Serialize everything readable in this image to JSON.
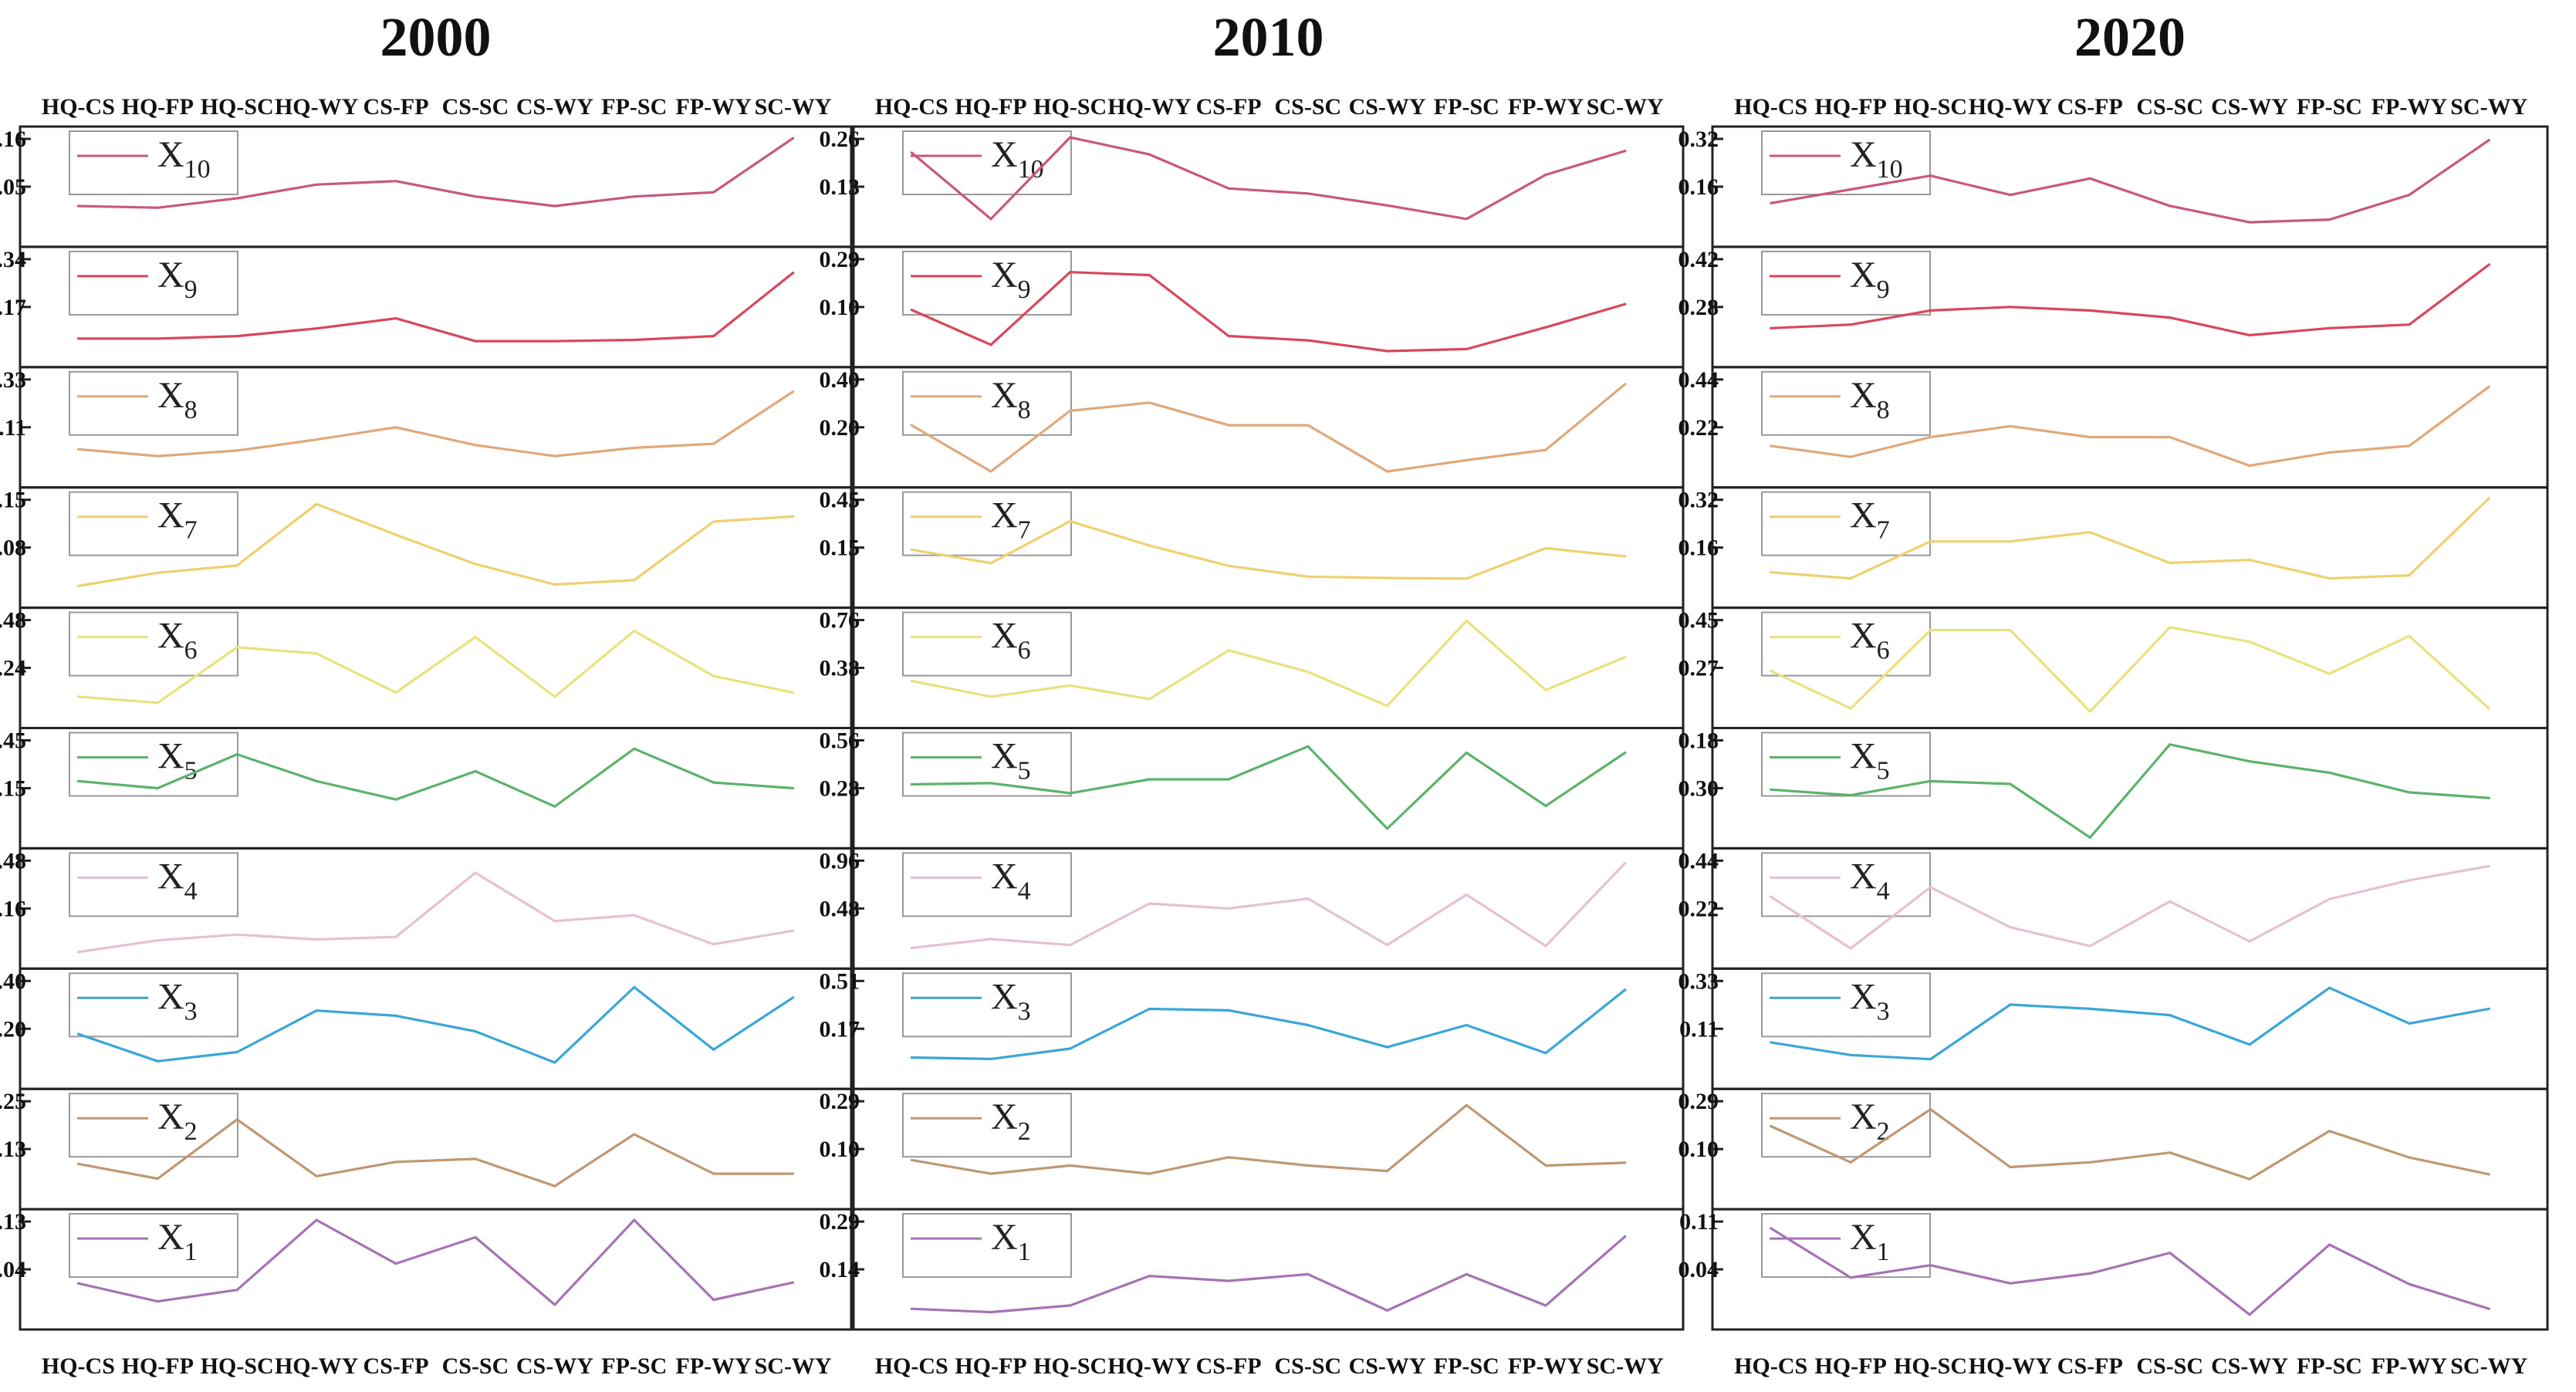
{
  "figure": {
    "categories": [
      "HQ-CS",
      "HQ-FP",
      "HQ-SC",
      "HQ-WY",
      "CS-FP",
      "CS-SC",
      "CS-WY",
      "FP-SC",
      "FP-WY",
      "SC-WY"
    ]
  },
  "chart_data": [
    {
      "type": "line",
      "title": "2000",
      "categories": [
        "HQ-CS",
        "HQ-FP",
        "HQ-SC",
        "HQ-WY",
        "CS-FP",
        "CS-SC",
        "CS-WY",
        "FP-SC",
        "FP-WY",
        "SC-WY"
      ],
      "panels": [
        {
          "label_base": "X",
          "label_sub": "10",
          "color": "#c8587a",
          "ticks": [
            "0.16",
            "0.05"
          ],
          "ylim": [
            -0.07,
            0.16
          ],
          "values": [
            0.0,
            -0.004,
            0.018,
            0.05,
            0.058,
            0.022,
            0.0,
            0.022,
            0.032,
            0.158
          ]
        },
        {
          "label_base": "X",
          "label_sub": "9",
          "color": "#d8475c",
          "ticks": [
            "0.34",
            "0.17"
          ],
          "ylim": [
            -0.05,
            0.34
          ],
          "values": [
            0.02,
            0.02,
            0.03,
            0.06,
            0.1,
            0.01,
            0.01,
            0.015,
            0.03,
            0.28
          ]
        },
        {
          "label_base": "X",
          "label_sub": "8",
          "color": "#e0a87a",
          "ticks": [
            "0.33",
            "0.11"
          ],
          "ylim": [
            -0.03,
            0.33
          ],
          "values": [
            0.07,
            0.045,
            0.065,
            0.105,
            0.15,
            0.085,
            0.045,
            0.075,
            0.09,
            0.28
          ]
        },
        {
          "label_base": "X",
          "label_sub": "7",
          "color": "#efd06e",
          "ticks": [
            "0.15",
            "0.08"
          ],
          "ylim": [
            0.015,
            0.15
          ],
          "values": [
            0.03,
            0.048,
            0.058,
            0.142,
            0.1,
            0.06,
            0.032,
            0.038,
            0.118,
            0.125
          ]
        },
        {
          "label_base": "X",
          "label_sub": "6",
          "color": "#e8e27e",
          "ticks": [
            "0.48",
            "0.24"
          ],
          "ylim": [
            0.0,
            0.48
          ],
          "values": [
            0.1,
            0.07,
            0.34,
            0.31,
            0.12,
            0.39,
            0.1,
            0.42,
            0.2,
            0.12
          ]
        },
        {
          "label_base": "X",
          "label_sub": "5",
          "color": "#5cb36a",
          "ticks": [
            "0.45",
            "0.15"
          ],
          "ylim": [
            -0.25,
            0.45
          ],
          "values": [
            0.15,
            0.1,
            0.34,
            0.15,
            0.02,
            0.22,
            -0.03,
            0.38,
            0.14,
            0.1
          ]
        },
        {
          "label_base": "X",
          "label_sub": "4",
          "color": "#e6c0d4",
          "ticks": [
            "0.48",
            "0.16"
          ],
          "ylim": [
            -0.03,
            0.48
          ],
          "values": [
            0.0,
            0.06,
            0.09,
            0.065,
            0.078,
            0.41,
            0.16,
            0.19,
            0.04,
            0.11
          ]
        },
        {
          "label_base": "X",
          "label_sub": "3",
          "color": "#3aa6d8",
          "ticks": [
            "0.40",
            "0.20"
          ],
          "ylim": [
            0.02,
            0.4
          ],
          "values": [
            0.19,
            0.085,
            0.12,
            0.28,
            0.26,
            0.2,
            0.08,
            0.37,
            0.13,
            0.33
          ]
        },
        {
          "label_base": "X",
          "label_sub": "2",
          "color": "#bf9872",
          "ticks": [
            "0.25",
            "0.13"
          ],
          "ylim": [
            0.05,
            0.25
          ],
          "values": [
            0.12,
            0.09,
            0.21,
            0.095,
            0.124,
            0.13,
            0.075,
            0.18,
            0.1,
            0.1
          ]
        },
        {
          "label_base": "X",
          "label_sub": "1",
          "color": "#a772b5",
          "ticks": [
            "0.13",
            "0.04"
          ],
          "ylim": [
            0.01,
            0.13
          ],
          "values": [
            0.053,
            0.031,
            0.045,
            0.13,
            0.077,
            0.109,
            0.027,
            0.13,
            0.033,
            0.054
          ]
        }
      ]
    },
    {
      "type": "line",
      "title": "2010",
      "categories": [
        "HQ-CS",
        "HQ-FP",
        "HQ-SC",
        "HQ-WY",
        "CS-FP",
        "CS-SC",
        "CS-WY",
        "FP-SC",
        "FP-WY",
        "SC-WY"
      ],
      "panels": [
        {
          "label_base": "X",
          "label_sub": "10",
          "color": "#c8587a",
          "ticks": [
            "0.26",
            "0.13"
          ],
          "ylim": [
            -0.02,
            0.27
          ],
          "values": [
            0.225,
            0.03,
            0.27,
            0.22,
            0.12,
            0.105,
            0.07,
            0.03,
            0.16,
            0.23
          ]
        },
        {
          "label_base": "X",
          "label_sub": "9",
          "color": "#d8475c",
          "ticks": [
            "0.29",
            "0.10"
          ],
          "ylim": [
            -0.04,
            0.3
          ],
          "values": [
            0.12,
            0.0,
            0.25,
            0.24,
            0.03,
            0.015,
            -0.022,
            -0.015,
            0.06,
            0.14
          ]
        },
        {
          "label_base": "X",
          "label_sub": "8",
          "color": "#e0a87a",
          "ticks": [
            "0.40",
            "0.20"
          ],
          "ylim": [
            -0.05,
            0.43
          ],
          "values": [
            0.2,
            -0.025,
            0.27,
            0.31,
            0.2,
            0.2,
            -0.025,
            0.03,
            0.08,
            0.4
          ]
        },
        {
          "label_base": "X",
          "label_sub": "7",
          "color": "#efd06e",
          "ticks": [
            "0.45",
            "0.15"
          ],
          "ylim": [
            -0.05,
            0.68
          ],
          "values": [
            0.3,
            0.2,
            0.51,
            0.33,
            0.18,
            0.1,
            0.09,
            0.085,
            0.31,
            0.25
          ]
        },
        {
          "label_base": "X",
          "label_sub": "6",
          "color": "#e8e27e",
          "ticks": [
            "0.76",
            "0.38"
          ],
          "ylim": [
            0.0,
            0.87
          ],
          "values": [
            0.32,
            0.18,
            0.28,
            0.16,
            0.59,
            0.4,
            0.1,
            0.85,
            0.24,
            0.53
          ]
        },
        {
          "label_base": "X",
          "label_sub": "5",
          "color": "#5cb36a",
          "ticks": [
            "0.56",
            "0.28"
          ],
          "ylim": [
            -0.12,
            0.66
          ],
          "values": [
            0.3,
            0.31,
            0.23,
            0.34,
            0.34,
            0.6,
            -0.05,
            0.55,
            0.13,
            0.55
          ]
        },
        {
          "label_base": "X",
          "label_sub": "4",
          "color": "#e6c0d4",
          "ticks": [
            "0.96",
            "0.48"
          ],
          "ylim": [
            0.0,
            1.0
          ],
          "values": [
            0.1,
            0.19,
            0.13,
            0.55,
            0.5,
            0.6,
            0.13,
            0.64,
            0.12,
            0.96
          ]
        },
        {
          "label_base": "X",
          "label_sub": "3",
          "color": "#3aa6d8",
          "ticks": [
            "0.51",
            "0.17"
          ],
          "ylim": [
            -0.09,
            0.58
          ],
          "values": [
            0.05,
            0.04,
            0.11,
            0.38,
            0.37,
            0.27,
            0.12,
            0.27,
            0.08,
            0.51
          ]
        },
        {
          "label_base": "X",
          "label_sub": "2",
          "color": "#bf9872",
          "ticks": [
            "0.29",
            "0.10"
          ],
          "ylim": [
            -0.05,
            0.31
          ],
          "values": [
            0.09,
            0.04,
            0.07,
            0.04,
            0.1,
            0.07,
            0.05,
            0.29,
            0.07,
            0.08
          ]
        },
        {
          "label_base": "X",
          "label_sub": "1",
          "color": "#a772b5",
          "ticks": [
            "0.29",
            "0.14"
          ],
          "ylim": [
            0.02,
            0.32
          ],
          "values": [
            0.05,
            0.04,
            0.06,
            0.15,
            0.135,
            0.155,
            0.045,
            0.155,
            0.06,
            0.27
          ]
        }
      ]
    },
    {
      "type": "line",
      "title": "2020",
      "categories": [
        "HQ-CS",
        "HQ-FP",
        "HQ-SC",
        "HQ-WY",
        "CS-FP",
        "CS-SC",
        "CS-WY",
        "FP-SC",
        "FP-WY",
        "SC-WY"
      ],
      "panels": [
        {
          "label_base": "X",
          "label_sub": "10",
          "color": "#c8587a",
          "ticks": [
            "0.32",
            "0.16"
          ],
          "ylim": [
            -0.03,
            0.33
          ],
          "values": [
            0.09,
            0.14,
            0.19,
            0.12,
            0.18,
            0.08,
            0.02,
            0.03,
            0.12,
            0.32
          ]
        },
        {
          "label_base": "X",
          "label_sub": "9",
          "color": "#d8475c",
          "ticks": [
            "0.42",
            "0.28"
          ],
          "ylim": [
            0.16,
            0.44
          ],
          "values": [
            0.24,
            0.25,
            0.29,
            0.3,
            0.29,
            0.27,
            0.22,
            0.24,
            0.25,
            0.42
          ]
        },
        {
          "label_base": "X",
          "label_sub": "8",
          "color": "#e0a87a",
          "ticks": [
            "0.44",
            "0.22"
          ],
          "ylim": [
            0.02,
            0.47
          ],
          "values": [
            0.16,
            0.11,
            0.2,
            0.25,
            0.2,
            0.2,
            0.07,
            0.13,
            0.16,
            0.43
          ]
        },
        {
          "label_base": "X",
          "label_sub": "7",
          "color": "#efd06e",
          "ticks": [
            "0.32",
            "0.16"
          ],
          "ylim": [
            0.01,
            0.33
          ],
          "values": [
            0.09,
            0.07,
            0.19,
            0.19,
            0.22,
            0.12,
            0.13,
            0.07,
            0.08,
            0.33
          ]
        },
        {
          "label_base": "X",
          "label_sub": "6",
          "color": "#e8e27e",
          "ticks": [
            "0.45",
            "0.27"
          ],
          "ylim": [
            0.12,
            0.46
          ],
          "values": [
            0.28,
            0.15,
            0.42,
            0.42,
            0.14,
            0.43,
            0.38,
            0.27,
            0.4,
            0.15
          ]
        },
        {
          "label_base": "X",
          "label_sub": "5",
          "color": "#5cb36a",
          "ticks": [
            "0.18",
            "0.30"
          ],
          "ylim": [
            0.15,
            0.5
          ],
          "values": [
            0.32,
            0.3,
            0.35,
            0.34,
            0.15,
            0.48,
            0.42,
            0.38,
            0.31,
            0.29
          ]
        },
        {
          "label_base": "X",
          "label_sub": "4",
          "color": "#e6c0d4",
          "ticks": [
            "0.44",
            "0.22"
          ],
          "ylim": [
            0.05,
            0.47
          ],
          "values": [
            0.31,
            0.09,
            0.35,
            0.18,
            0.1,
            0.29,
            0.12,
            0.3,
            0.38,
            0.44
          ]
        },
        {
          "label_base": "X",
          "label_sub": "3",
          "color": "#3aa6d8",
          "ticks": [
            "0.33",
            "0.11"
          ],
          "ylim": [
            -0.11,
            0.36
          ],
          "values": [
            0.06,
            0.0,
            -0.02,
            0.24,
            0.22,
            0.19,
            0.05,
            0.32,
            0.15,
            0.22
          ]
        },
        {
          "label_base": "X",
          "label_sub": "2",
          "color": "#bf9872",
          "ticks": [
            "0.29",
            "0.10"
          ],
          "ylim": [
            -0.08,
            0.33
          ],
          "values": [
            0.22,
            0.07,
            0.29,
            0.05,
            0.07,
            0.11,
            0.0,
            0.2,
            0.09,
            0.02
          ]
        },
        {
          "label_base": "X",
          "label_sub": "1",
          "color": "#a772b5",
          "ticks": [
            "0.11",
            "0.04"
          ],
          "ylim": [
            0.0,
            0.12
          ],
          "values": [
            0.11,
            0.05,
            0.065,
            0.043,
            0.055,
            0.08,
            0.005,
            0.09,
            0.042,
            0.012
          ]
        }
      ]
    }
  ]
}
